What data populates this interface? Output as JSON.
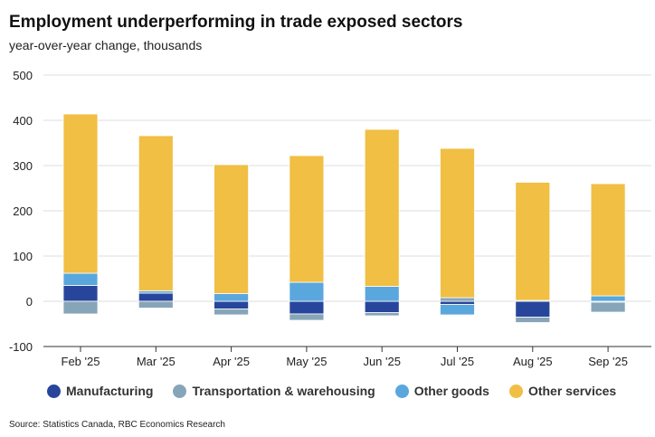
{
  "header": {
    "title": "Employment underperforming in trade exposed sectors",
    "subtitle": "year-over-year change, thousands"
  },
  "footer": {
    "source": "Source: Statistics Canada, RBC Economics Research"
  },
  "chart_data": {
    "type": "bar",
    "stacked": true,
    "title": "Employment underperforming in trade exposed sectors",
    "subtitle": "year-over-year change, thousands",
    "xlabel": "",
    "ylabel": "",
    "ylim": [
      -100,
      500
    ],
    "yticks": [
      -100,
      0,
      100,
      200,
      300,
      400,
      500
    ],
    "grid": true,
    "legend_position": "bottom",
    "categories": [
      "Feb '25",
      "Mar '25",
      "Apr '25",
      "May '25",
      "Jun '25",
      "Jul '25",
      "Aug '25",
      "Sep '25"
    ],
    "series": [
      {
        "name": "Manufacturing",
        "color": "#27469b",
        "values": [
          35,
          18,
          -17,
          -28,
          -25,
          -7,
          -35,
          -2
        ]
      },
      {
        "name": "Transportation & warehousing",
        "color": "#87a5b8",
        "values": [
          -28,
          -15,
          -13,
          -14,
          -7,
          8,
          -12,
          -22
        ]
      },
      {
        "name": "Other goods",
        "color": "#5aa7dd",
        "values": [
          27,
          5,
          17,
          42,
          33,
          -23,
          2,
          12
        ]
      },
      {
        "name": "Other services",
        "color": "#f0bf43",
        "values": [
          352,
          343,
          285,
          280,
          347,
          330,
          261,
          248
        ]
      }
    ]
  }
}
